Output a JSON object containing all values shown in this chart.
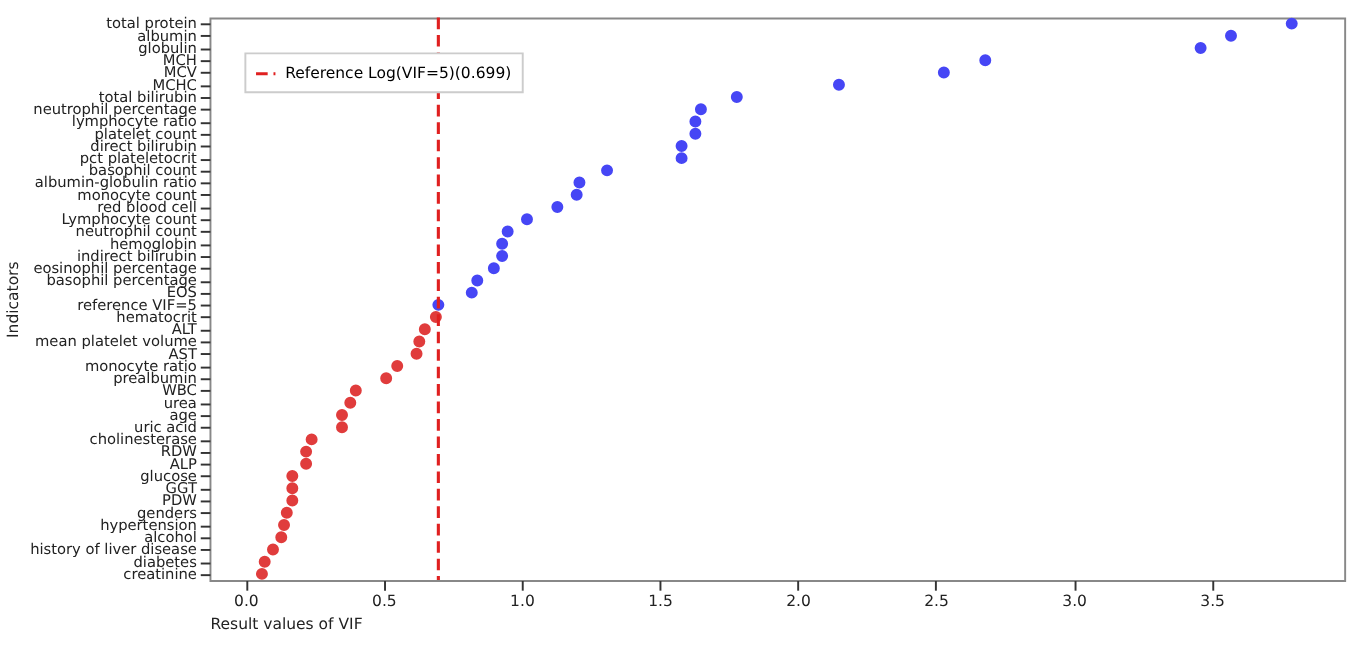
{
  "chart_data": {
    "type": "scatter",
    "xlabel": "Result values of VIF",
    "ylabel": "Indicators",
    "categories": [
      "total protein",
      "albumin",
      "globulin",
      "MCH",
      "MCV",
      "MCHC",
      "total bilirubin",
      "neutrophil percentage",
      "lymphocyte ratio",
      "platelet count",
      "direct bilirubin",
      "pct plateletocrit",
      "basophil count",
      "albumin-globulin ratio",
      "monocyte count",
      "red blood cell",
      "Lymphocyte count",
      "neutrophil count",
      "hemoglobin",
      "indirect bilirubin",
      "eosinophil percentage",
      "basophil percentage",
      "EOS",
      "reference VIF=5",
      "hematocrit",
      "ALT",
      "mean platelet volume",
      "AST",
      "monocyte ratio",
      "prealbumin",
      "WBC",
      "urea",
      "age",
      "uric acid",
      "cholinesterase",
      "RDW",
      "ALP",
      "glucose",
      "GGT",
      "PDW",
      "genders",
      "hypertension",
      "alcohol",
      "history of liver disease",
      "diabetes",
      "creatinine"
    ],
    "values": [
      3.79,
      3.57,
      3.46,
      2.68,
      2.53,
      2.15,
      1.78,
      1.65,
      1.63,
      1.63,
      1.58,
      1.58,
      1.31,
      1.21,
      1.2,
      1.13,
      1.02,
      0.95,
      0.93,
      0.93,
      0.9,
      0.84,
      0.82,
      0.699,
      0.69,
      0.65,
      0.63,
      0.62,
      0.55,
      0.51,
      0.4,
      0.38,
      0.35,
      0.35,
      0.24,
      0.22,
      0.22,
      0.17,
      0.17,
      0.17,
      0.15,
      0.14,
      0.13,
      0.1,
      0.07,
      0.06
    ],
    "colors": [
      "#4646f5",
      "#4646f5",
      "#4646f5",
      "#4646f5",
      "#4646f5",
      "#4646f5",
      "#4646f5",
      "#4646f5",
      "#4646f5",
      "#4646f5",
      "#4646f5",
      "#4646f5",
      "#4646f5",
      "#4646f5",
      "#4646f5",
      "#4646f5",
      "#4646f5",
      "#4646f5",
      "#4646f5",
      "#4646f5",
      "#4646f5",
      "#4646f5",
      "#4646f5",
      "#4646f5",
      "#e03c3c",
      "#e03c3c",
      "#e03c3c",
      "#e03c3c",
      "#e03c3c",
      "#e03c3c",
      "#e03c3c",
      "#e03c3c",
      "#e03c3c",
      "#e03c3c",
      "#e03c3c",
      "#e03c3c",
      "#e03c3c",
      "#e03c3c",
      "#e03c3c",
      "#e03c3c",
      "#e03c3c",
      "#e03c3c",
      "#e03c3c",
      "#e03c3c",
      "#e03c3c",
      "#e03c3c"
    ],
    "xlim": [
      -0.13,
      3.98
    ],
    "xticks": [
      {
        "value": 0,
        "label": "0.0"
      },
      {
        "value": 0.5,
        "label": "0.5"
      },
      {
        "value": 1,
        "label": "1.0"
      },
      {
        "value": 1.5,
        "label": "1.5"
      },
      {
        "value": 2,
        "label": "2.0"
      },
      {
        "value": 2.5,
        "label": "2.5"
      },
      {
        "value": 3,
        "label": "3.0"
      },
      {
        "value": 3.5,
        "label": "3.5"
      }
    ],
    "ref_lines": [
      {
        "axis": "x",
        "value": 0.699,
        "label": "Reference Log(VIF=5)(0.699)",
        "color": "#e02020",
        "line_style": "dashed"
      }
    ],
    "orientation": "horizontal",
    "marker": "circle",
    "grid": false,
    "legend": "top left"
  }
}
